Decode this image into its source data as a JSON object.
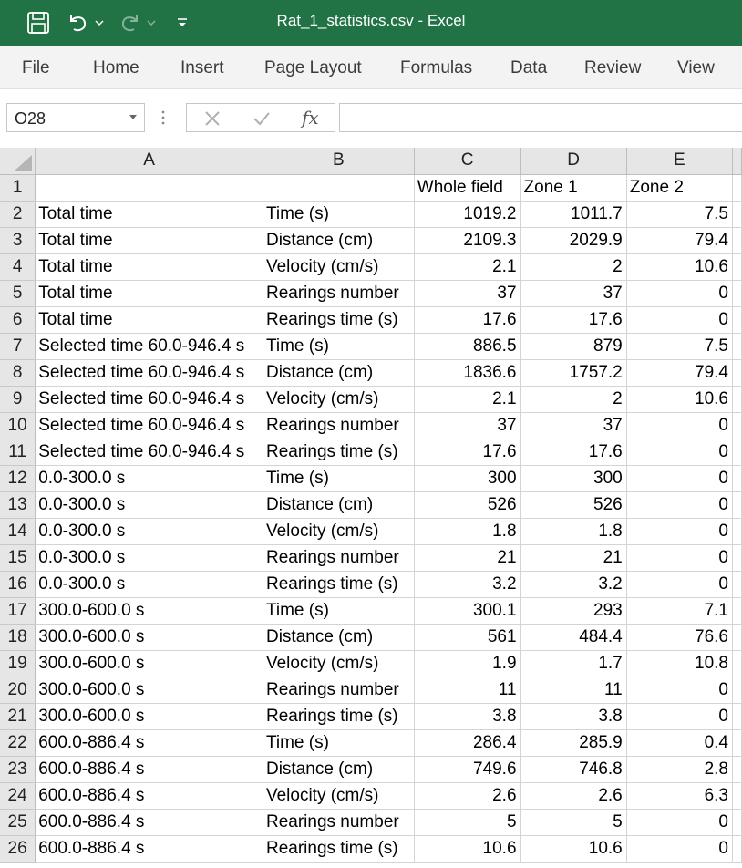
{
  "window": {
    "title": "Rat_1_statistics.csv  -  Excel",
    "theme_color": "#217346"
  },
  "quick_access": {
    "icons": [
      "save-icon",
      "undo-icon",
      "redo-icon",
      "customize-qat-icon"
    ]
  },
  "ribbon": {
    "tabs": [
      "File",
      "Home",
      "Insert",
      "Page Layout",
      "Formulas",
      "Data",
      "Review",
      "View"
    ]
  },
  "formula_bar": {
    "name_box": "O28",
    "fx_label": "fx",
    "formula": ""
  },
  "sheet": {
    "columns": [
      "A",
      "B",
      "C",
      "D",
      "E"
    ],
    "rows": [
      {
        "n": "1",
        "a": "",
        "b": "",
        "c": "Whole field",
        "d": "Zone 1",
        "e": "Zone 2"
      },
      {
        "n": "2",
        "a": "Total time",
        "b": "Time (s)",
        "c": "1019.2",
        "d": "1011.7",
        "e": "7.5"
      },
      {
        "n": "3",
        "a": "Total time",
        "b": "Distance (cm)",
        "c": "2109.3",
        "d": "2029.9",
        "e": "79.4"
      },
      {
        "n": "4",
        "a": "Total time",
        "b": "Velocity (cm/s)",
        "c": "2.1",
        "d": "2",
        "e": "10.6"
      },
      {
        "n": "5",
        "a": "Total time",
        "b": "Rearings number",
        "c": "37",
        "d": "37",
        "e": "0"
      },
      {
        "n": "6",
        "a": "Total time",
        "b": "Rearings time (s)",
        "c": "17.6",
        "d": "17.6",
        "e": "0"
      },
      {
        "n": "7",
        "a": "Selected time 60.0-946.4 s",
        "b": "Time (s)",
        "c": "886.5",
        "d": "879",
        "e": "7.5"
      },
      {
        "n": "8",
        "a": "Selected time 60.0-946.4 s",
        "b": "Distance (cm)",
        "c": "1836.6",
        "d": "1757.2",
        "e": "79.4"
      },
      {
        "n": "9",
        "a": "Selected time 60.0-946.4 s",
        "b": "Velocity (cm/s)",
        "c": "2.1",
        "d": "2",
        "e": "10.6"
      },
      {
        "n": "10",
        "a": "Selected time 60.0-946.4 s",
        "b": "Rearings number",
        "c": "37",
        "d": "37",
        "e": "0"
      },
      {
        "n": "11",
        "a": "Selected time 60.0-946.4 s",
        "b": "Rearings time (s)",
        "c": "17.6",
        "d": "17.6",
        "e": "0"
      },
      {
        "n": "12",
        "a": "0.0-300.0 s",
        "b": "Time (s)",
        "c": "300",
        "d": "300",
        "e": "0"
      },
      {
        "n": "13",
        "a": "0.0-300.0 s",
        "b": "Distance (cm)",
        "c": "526",
        "d": "526",
        "e": "0"
      },
      {
        "n": "14",
        "a": "0.0-300.0 s",
        "b": "Velocity (cm/s)",
        "c": "1.8",
        "d": "1.8",
        "e": "0"
      },
      {
        "n": "15",
        "a": "0.0-300.0 s",
        "b": "Rearings number",
        "c": "21",
        "d": "21",
        "e": "0"
      },
      {
        "n": "16",
        "a": "0.0-300.0 s",
        "b": "Rearings time (s)",
        "c": "3.2",
        "d": "3.2",
        "e": "0"
      },
      {
        "n": "17",
        "a": "300.0-600.0 s",
        "b": "Time (s)",
        "c": "300.1",
        "d": "293",
        "e": "7.1"
      },
      {
        "n": "18",
        "a": "300.0-600.0 s",
        "b": "Distance (cm)",
        "c": "561",
        "d": "484.4",
        "e": "76.6"
      },
      {
        "n": "19",
        "a": "300.0-600.0 s",
        "b": "Velocity (cm/s)",
        "c": "1.9",
        "d": "1.7",
        "e": "10.8"
      },
      {
        "n": "20",
        "a": "300.0-600.0 s",
        "b": "Rearings number",
        "c": "11",
        "d": "11",
        "e": "0"
      },
      {
        "n": "21",
        "a": "300.0-600.0 s",
        "b": "Rearings time (s)",
        "c": "3.8",
        "d": "3.8",
        "e": "0"
      },
      {
        "n": "22",
        "a": "600.0-886.4 s",
        "b": "Time (s)",
        "c": "286.4",
        "d": "285.9",
        "e": "0.4"
      },
      {
        "n": "23",
        "a": "600.0-886.4 s",
        "b": "Distance (cm)",
        "c": "749.6",
        "d": "746.8",
        "e": "2.8"
      },
      {
        "n": "24",
        "a": "600.0-886.4 s",
        "b": "Velocity (cm/s)",
        "c": "2.6",
        "d": "2.6",
        "e": "6.3"
      },
      {
        "n": "25",
        "a": "600.0-886.4 s",
        "b": "Rearings number",
        "c": "5",
        "d": "5",
        "e": "0"
      },
      {
        "n": "26",
        "a": "600.0-886.4 s",
        "b": "Rearings time (s)",
        "c": "10.6",
        "d": "10.6",
        "e": "0"
      }
    ]
  }
}
